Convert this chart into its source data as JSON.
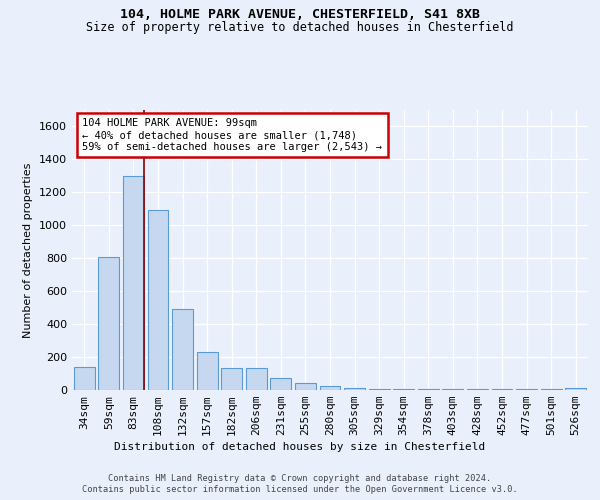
{
  "title1": "104, HOLME PARK AVENUE, CHESTERFIELD, S41 8XB",
  "title2": "Size of property relative to detached houses in Chesterfield",
  "xlabel": "Distribution of detached houses by size in Chesterfield",
  "ylabel": "Number of detached properties",
  "categories": [
    "34sqm",
    "59sqm",
    "83sqm",
    "108sqm",
    "132sqm",
    "157sqm",
    "182sqm",
    "206sqm",
    "231sqm",
    "255sqm",
    "280sqm",
    "305sqm",
    "329sqm",
    "354sqm",
    "378sqm",
    "403sqm",
    "428sqm",
    "452sqm",
    "477sqm",
    "501sqm",
    "526sqm"
  ],
  "values": [
    140,
    810,
    1300,
    1090,
    490,
    230,
    135,
    135,
    75,
    40,
    25,
    15,
    5,
    5,
    5,
    5,
    5,
    5,
    5,
    5,
    15
  ],
  "bar_color": "#c5d8f0",
  "bar_edge_color": "#5b9bd5",
  "annotation_text": "104 HOLME PARK AVENUE: 99sqm\n← 40% of detached houses are smaller (1,748)\n59% of semi-detached houses are larger (2,543) →",
  "annotation_box_color": "#ffffff",
  "annotation_box_edge_color": "#cc0000",
  "ylim": [
    0,
    1700
  ],
  "yticks": [
    0,
    200,
    400,
    600,
    800,
    1000,
    1200,
    1400,
    1600
  ],
  "footer1": "Contains HM Land Registry data © Crown copyright and database right 2024.",
  "footer2": "Contains public sector information licensed under the Open Government Licence v3.0.",
  "bg_color": "#eaf0fb",
  "plot_bg_color": "#eaf0fb"
}
